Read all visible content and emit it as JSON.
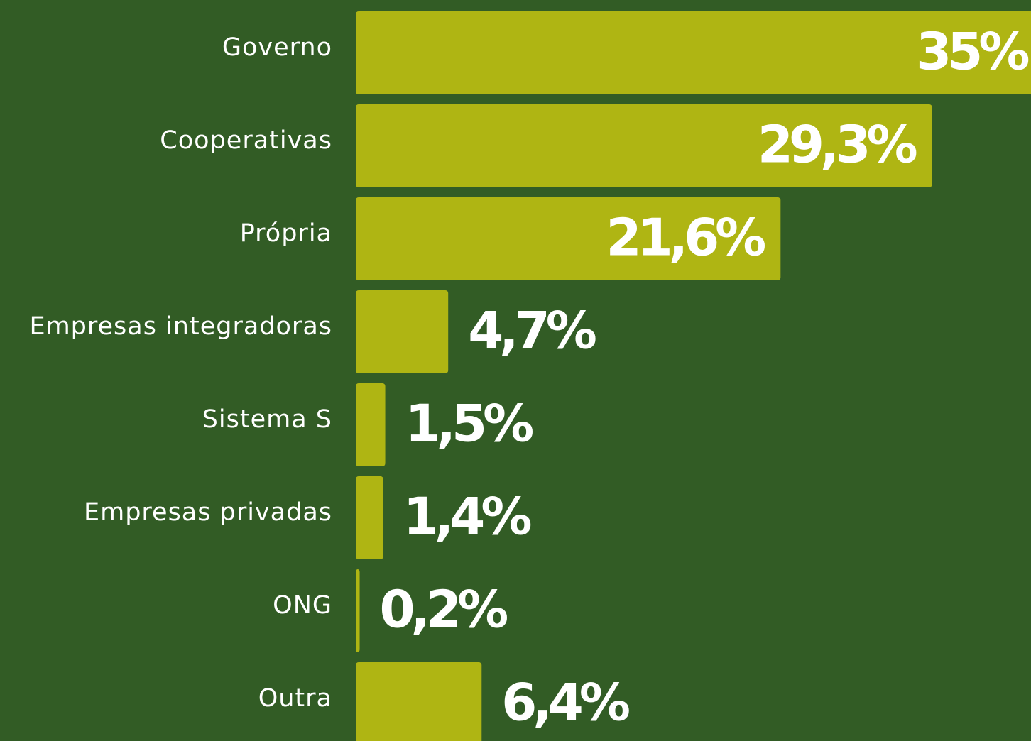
{
  "chart_data": {
    "type": "bar",
    "orientation": "horizontal",
    "categories": [
      "Governo",
      "Cooperativas",
      "Própria",
      "Empresas integradoras",
      "Sistema S",
      "Empresas privadas",
      "ONG",
      "Outra"
    ],
    "values": [
      35,
      29.3,
      21.6,
      4.7,
      1.5,
      1.4,
      0.2,
      6.4
    ],
    "value_labels": [
      "35%",
      "29,3%",
      "21,6%",
      "4,7%",
      "1,5%",
      "1,4%",
      "0,2%",
      "6,4%"
    ],
    "color": "#afb513"
  }
}
